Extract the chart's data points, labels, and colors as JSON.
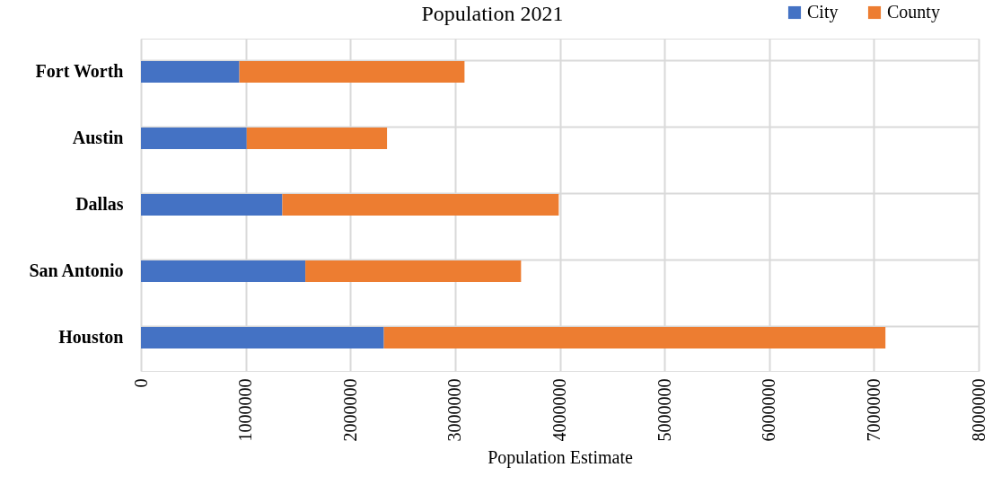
{
  "chart_data": {
    "type": "bar",
    "orientation": "horizontal",
    "stacked": true,
    "title": "Population 2021",
    "xlabel": "Population Estimate",
    "categories": [
      "Fort Worth",
      "Austin",
      "Dallas",
      "San Antonio",
      "Houston"
    ],
    "series": [
      {
        "name": "City",
        "color": "#4472c4",
        "values": [
          940000,
          1010000,
          1350000,
          1570000,
          2320000
        ]
      },
      {
        "name": "County",
        "color": "#ed7d31",
        "values": [
          2150000,
          1340000,
          2640000,
          2060000,
          4790000
        ]
      }
    ],
    "xlim": [
      0,
      8000000
    ],
    "xticks": [
      0,
      1000000,
      2000000,
      3000000,
      4000000,
      5000000,
      6000000,
      7000000,
      8000000
    ],
    "grid": true,
    "legend": "top right"
  }
}
